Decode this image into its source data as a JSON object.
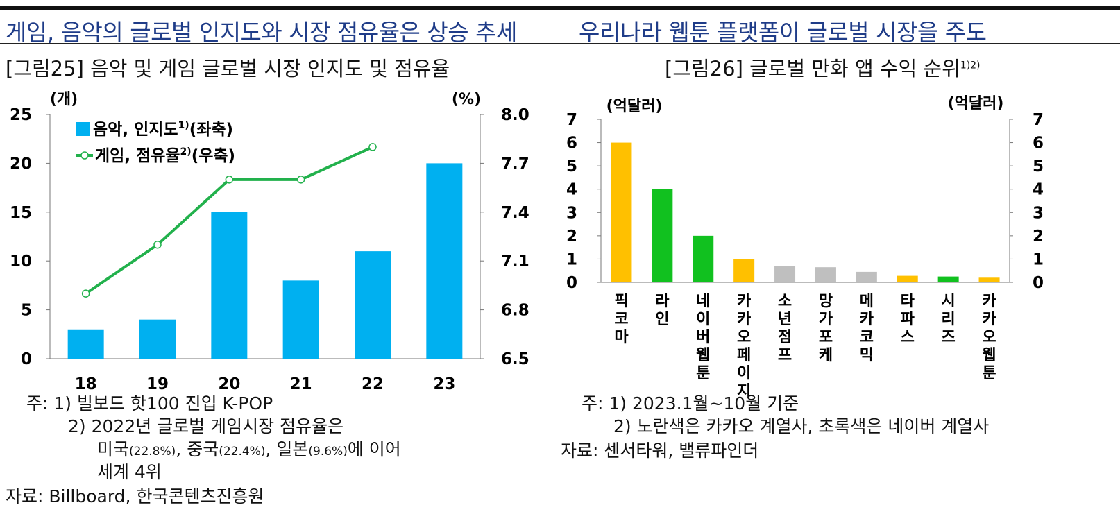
{
  "headlines": {
    "left": "게임, 음악의 글로벌 인지도와 시장 점유율은 상승 추세",
    "right": "우리나라 웹툰 플랫폼이 글로벌 시장을 주도"
  },
  "figures": {
    "fig25": {
      "title": "[그림25] 음악 및 게임 글로벌 시장 인지도 및 점유율"
    },
    "fig26": {
      "title": "[그림26] 글로벌 만화 앱 수익 순위",
      "title_sup": "1)2)"
    }
  },
  "chart_data": [
    {
      "type": "bar+line",
      "title": "[그림25] 음악 및 게임 글로벌 시장 인지도 및 점유율",
      "categories": [
        "18",
        "19",
        "20",
        "21",
        "22",
        "23"
      ],
      "series": [
        {
          "name": "음악, 인지도",
          "name_sup": "1)",
          "name_suffix": "(좌축)",
          "type": "bar",
          "axis": "left",
          "values": [
            3,
            4,
            15,
            8,
            11,
            20
          ]
        },
        {
          "name": "게임, 점유율",
          "name_sup": "2)",
          "name_suffix": "(우축)",
          "type": "line",
          "axis": "right",
          "values": [
            6.9,
            7.2,
            7.6,
            7.6,
            7.8,
            null
          ]
        }
      ],
      "y_left": {
        "label": "(개)",
        "ylim": [
          0,
          25
        ],
        "ticks": [
          "0",
          "5",
          "10",
          "15",
          "20",
          "25"
        ]
      },
      "y_right": {
        "label": "(%)",
        "ylim": [
          6.5,
          8.0
        ],
        "ticks": [
          "6.5",
          "6.8",
          "7.1",
          "7.4",
          "7.7",
          "8.0"
        ]
      },
      "colors": {
        "bar": "#00b0f0",
        "line": "#22b14c"
      },
      "notes": [
        "주: 1) 빌보드 핫100 진입 K-POP",
        "2) 2022년 글로벌 게임시장 점유율은",
        "세계 4위"
      ],
      "note_rich": {
        "pre": "미국",
        "pct1": "(22.8%)",
        "mid1": ", 중국",
        "pct2": "(22.4%)",
        "mid2": ", 일본",
        "pct3": "(9.6%)",
        "post": "에 이어"
      },
      "source": "자료: Billboard, 한국콘텐츠진흥원"
    },
    {
      "type": "bar",
      "title": "[그림26] 글로벌 만화 앱 수익 순위",
      "categories": [
        "픽코마",
        "라인",
        "네이버웹툰",
        "카카오페이지",
        "소년점프",
        "망가포케",
        "메카코믹",
        "타파스",
        "시리즈",
        "카카오웹툰"
      ],
      "values": [
        6.0,
        4.0,
        2.0,
        1.0,
        0.7,
        0.65,
        0.45,
        0.28,
        0.25,
        0.2
      ],
      "bar_groups": [
        "kakao",
        "naver",
        "naver",
        "kakao",
        "other",
        "other",
        "other",
        "kakao",
        "naver",
        "kakao"
      ],
      "y_left": {
        "label": "(억달러)",
        "ylim": [
          0,
          7
        ],
        "ticks": [
          "0",
          "1",
          "2",
          "3",
          "4",
          "5",
          "6",
          "7"
        ]
      },
      "y_right": {
        "label": "(억달러)",
        "ylim": [
          0,
          7
        ],
        "ticks": [
          "0",
          "1",
          "2",
          "3",
          "4",
          "5",
          "6",
          "7"
        ]
      },
      "colors": {
        "kakao": "#ffc000",
        "naver": "#11c11f",
        "other": "#bfbfbf"
      },
      "notes": [
        "주: 1) 2023.1월~10월 기준",
        "2) 노란색은 카카오 계열사, 초록색은 네이버 계열사"
      ],
      "source": "자료: 센서타워, 밸류파인더"
    }
  ]
}
